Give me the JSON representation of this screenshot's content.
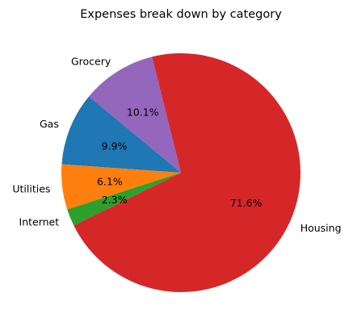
{
  "chart_data": {
    "type": "pie",
    "title": "Expenses break down by category",
    "start_angle_deg": 104,
    "direction": "counterclockwise",
    "slices": [
      {
        "label": "Grocery",
        "value": 10.1,
        "pct_label": "10.1%",
        "color": "#9467bd"
      },
      {
        "label": "Gas",
        "value": 9.9,
        "pct_label": "9.9%",
        "color": "#1f77b4"
      },
      {
        "label": "Utilities",
        "value": 6.1,
        "pct_label": "6.1%",
        "color": "#ff7f0e"
      },
      {
        "label": "Internet",
        "value": 2.3,
        "pct_label": "2.3%",
        "color": "#2ca02c"
      },
      {
        "label": "Housing",
        "value": 71.6,
        "pct_label": "71.6%",
        "color": "#d62728"
      }
    ]
  }
}
